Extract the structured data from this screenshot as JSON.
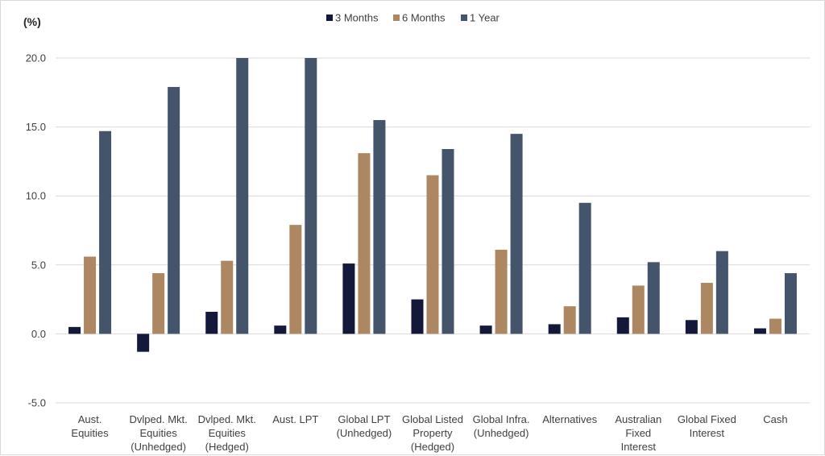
{
  "chart_data": {
    "type": "bar",
    "ylabel": "(%)",
    "ylim": [
      -5.0,
      20.0
    ],
    "yticks": [
      "20.0",
      "15.0",
      "10.0",
      "5.0",
      "0.0",
      "-5.0"
    ],
    "ytick_values": [
      20,
      15,
      10,
      5,
      0,
      -5
    ],
    "grid": true,
    "legend_position": "top-center",
    "categories": [
      [
        "Aust.",
        "Equities"
      ],
      [
        "Dvlped. Mkt.",
        "Equities",
        "(Unhedged)"
      ],
      [
        "Dvlped. Mkt.",
        "Equities",
        "(Hedged)"
      ],
      [
        "Aust. LPT"
      ],
      [
        "Global LPT",
        "(Unhedged)"
      ],
      [
        "Global Listed",
        "Property",
        "(Hedged)"
      ],
      [
        "Global Infra.",
        "(Unhedged)"
      ],
      [
        "Alternatives"
      ],
      [
        "Australian",
        "Fixed",
        "Interest"
      ],
      [
        "Global Fixed",
        "Interest"
      ],
      [
        "Cash"
      ]
    ],
    "series": [
      {
        "name": "3 Months",
        "color": "#14183a",
        "values": [
          0.5,
          -1.3,
          1.6,
          0.6,
          5.1,
          2.5,
          0.6,
          0.7,
          1.2,
          1.0,
          0.4
        ]
      },
      {
        "name": "6 Months",
        "color": "#ac8762",
        "values": [
          5.6,
          4.4,
          5.3,
          7.9,
          13.1,
          11.5,
          6.1,
          2.0,
          3.5,
          3.7,
          1.1
        ]
      },
      {
        "name": "1 Year",
        "color": "#44546a",
        "values": [
          14.7,
          17.9,
          20.0,
          20.0,
          15.5,
          13.4,
          14.5,
          9.5,
          5.2,
          6.0,
          4.4
        ]
      }
    ]
  }
}
